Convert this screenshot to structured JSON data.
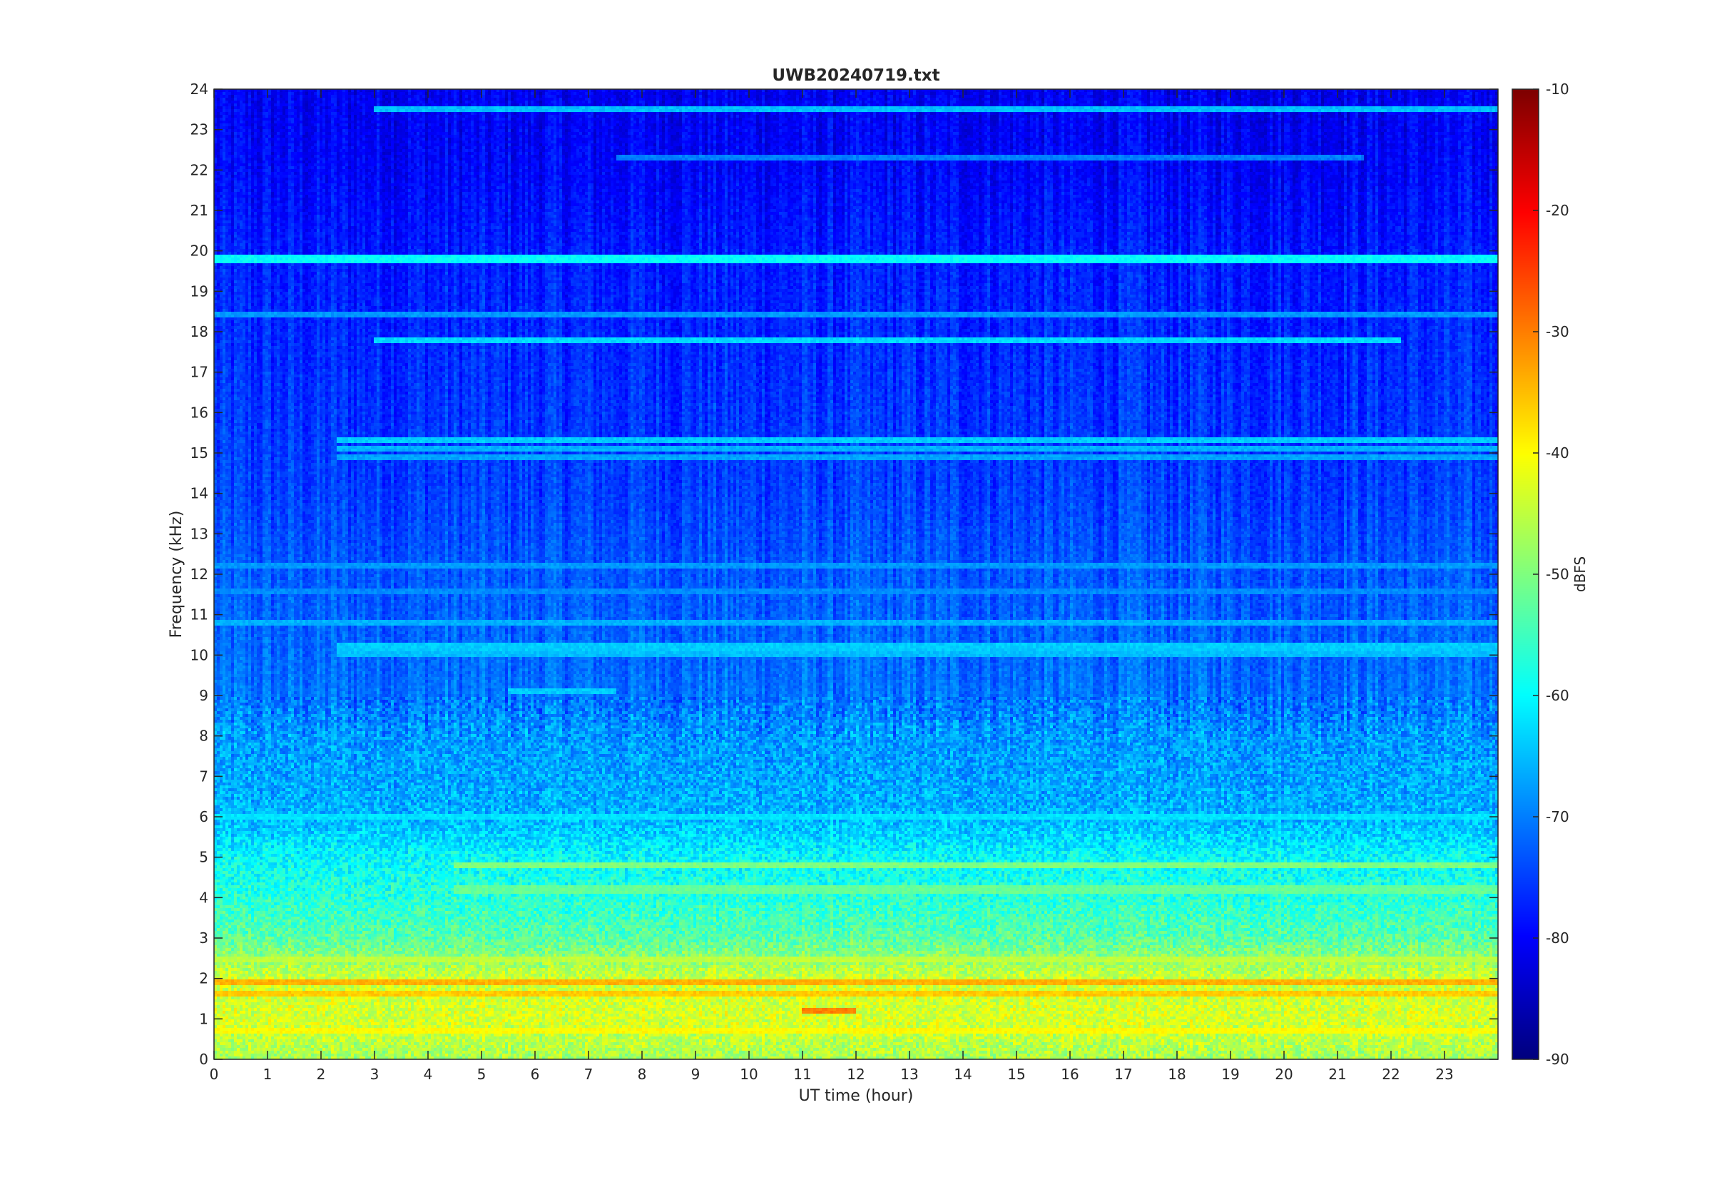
{
  "chart_data": {
    "type": "heatmap",
    "title": "UWB20240719.txt",
    "xlabel": "UT time (hour)",
    "ylabel": "Frequency (kHz)",
    "xlim": [
      0,
      24
    ],
    "ylim": [
      0,
      24
    ],
    "x_ticks": [
      "0",
      "1",
      "2",
      "3",
      "4",
      "5",
      "6",
      "7",
      "8",
      "9",
      "10",
      "11",
      "12",
      "13",
      "14",
      "15",
      "16",
      "17",
      "18",
      "19",
      "20",
      "21",
      "22",
      "23"
    ],
    "y_ticks": [
      "0",
      "1",
      "2",
      "3",
      "4",
      "5",
      "6",
      "7",
      "8",
      "9",
      "10",
      "11",
      "12",
      "13",
      "14",
      "15",
      "16",
      "17",
      "18",
      "19",
      "20",
      "21",
      "22",
      "23",
      "24"
    ],
    "colorbar": {
      "label": "dBFS",
      "colormap": "jet",
      "clim": [
        -90,
        -10
      ],
      "ticks": [
        "-10",
        "-20",
        "-30",
        "-40",
        "-50",
        "-60",
        "-70",
        "-80",
        "-90"
      ]
    },
    "frequency_profile_dbfs": [
      {
        "f": 0,
        "db": -47
      },
      {
        "f": 1,
        "db": -43
      },
      {
        "f": 2,
        "db": -44
      },
      {
        "f": 3,
        "db": -53
      },
      {
        "f": 4,
        "db": -57
      },
      {
        "f": 5,
        "db": -60
      },
      {
        "f": 6,
        "db": -66
      },
      {
        "f": 7,
        "db": -67
      },
      {
        "f": 8,
        "db": -68
      },
      {
        "f": 9,
        "db": -71
      },
      {
        "f": 10,
        "db": -72
      },
      {
        "f": 12,
        "db": -73
      },
      {
        "f": 14,
        "db": -75
      },
      {
        "f": 16,
        "db": -76
      },
      {
        "f": 18,
        "db": -77
      },
      {
        "f": 20,
        "db": -78
      },
      {
        "f": 22,
        "db": -80
      },
      {
        "f": 24,
        "db": -81
      }
    ],
    "persistent_lines": [
      {
        "f_khz": 19.8,
        "t_start": 0,
        "t_end": 24,
        "db": -60
      },
      {
        "f_khz": 23.5,
        "t_start": 3,
        "t_end": 24,
        "db": -65
      },
      {
        "f_khz": 17.8,
        "t_start": 3,
        "t_end": 22.2,
        "db": -63
      },
      {
        "f_khz": 18.4,
        "t_start": 0,
        "t_end": 24,
        "db": -68
      },
      {
        "f_khz": 22.3,
        "t_start": 7.5,
        "t_end": 21.5,
        "db": -70
      },
      {
        "f_khz": 15.3,
        "t_start": 2.3,
        "t_end": 24,
        "db": -64
      },
      {
        "f_khz": 15.1,
        "t_start": 2.3,
        "t_end": 24,
        "db": -66
      },
      {
        "f_khz": 14.9,
        "t_start": 2.3,
        "t_end": 24,
        "db": -67
      },
      {
        "f_khz": 12.2,
        "t_start": 0,
        "t_end": 24,
        "db": -68
      },
      {
        "f_khz": 11.6,
        "t_start": 0,
        "t_end": 24,
        "db": -69
      },
      {
        "f_khz": 10.8,
        "t_start": 0,
        "t_end": 24,
        "db": -66
      },
      {
        "f_khz": 10.2,
        "t_start": 2.3,
        "t_end": 24,
        "db": -64
      },
      {
        "f_khz": 10.0,
        "t_start": 2.3,
        "t_end": 24,
        "db": -65
      },
      {
        "f_khz": 9.1,
        "t_start": 5.5,
        "t_end": 7.5,
        "db": -64
      },
      {
        "f_khz": 6.0,
        "t_start": 0,
        "t_end": 24,
        "db": -62
      },
      {
        "f_khz": 4.8,
        "t_start": 4.5,
        "t_end": 24,
        "db": -50
      },
      {
        "f_khz": 4.2,
        "t_start": 4.5,
        "t_end": 24,
        "db": -52
      },
      {
        "f_khz": 2.5,
        "t_start": 0,
        "t_end": 24,
        "db": -45
      },
      {
        "f_khz": 1.9,
        "t_start": 0,
        "t_end": 24,
        "db": -34
      },
      {
        "f_khz": 1.6,
        "t_start": 0,
        "t_end": 24,
        "db": -36
      },
      {
        "f_khz": 1.2,
        "t_start": 11,
        "t_end": 12,
        "db": -30
      },
      {
        "f_khz": 0.7,
        "t_start": 0,
        "t_end": 24,
        "db": -40
      }
    ]
  }
}
